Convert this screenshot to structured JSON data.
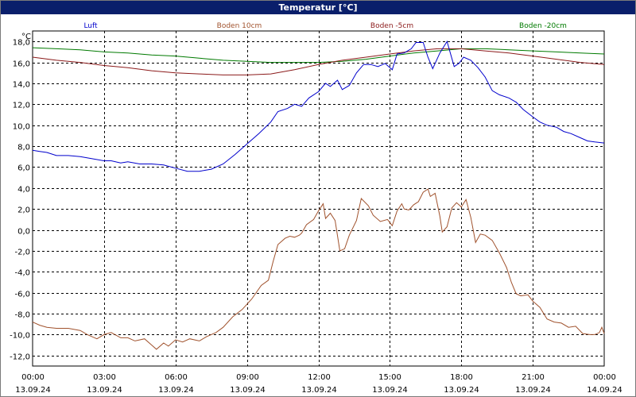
{
  "window": {
    "title": "Temperatur [°C]"
  },
  "chart_data": {
    "type": "line",
    "title": "Temperatur [°C]",
    "ylabel": "°C",
    "xlabel": "",
    "ylim": [
      -13,
      19
    ],
    "xlim": [
      0,
      24
    ],
    "grid": true,
    "legend": "top",
    "y_ticks": [
      {
        "value": 18,
        "label": "18,0"
      },
      {
        "value": 16,
        "label": "16,0"
      },
      {
        "value": 14,
        "label": "14,0"
      },
      {
        "value": 12,
        "label": "12,0"
      },
      {
        "value": 10,
        "label": "10,0"
      },
      {
        "value": 8,
        "label": "8,0"
      },
      {
        "value": 6,
        "label": "6,0"
      },
      {
        "value": 4,
        "label": "4,0"
      },
      {
        "value": 2,
        "label": "2,0"
      },
      {
        "value": 0,
        "label": "0,0"
      },
      {
        "value": -2,
        "label": "-2,0"
      },
      {
        "value": -4,
        "label": "-4,0"
      },
      {
        "value": -6,
        "label": "-6,0"
      },
      {
        "value": -8,
        "label": "-8,0"
      },
      {
        "value": -10,
        "label": "-10,0"
      },
      {
        "value": -12,
        "label": "-12,0"
      }
    ],
    "x_ticks": [
      {
        "value": 0,
        "time": "00:00",
        "date": "13.09.24"
      },
      {
        "value": 3,
        "time": "03:00",
        "date": "13.09.24"
      },
      {
        "value": 6,
        "time": "06:00",
        "date": "13.09.24"
      },
      {
        "value": 9,
        "time": "09:00",
        "date": "13.09.24"
      },
      {
        "value": 12,
        "time": "12:00",
        "date": "13.09.24"
      },
      {
        "value": 15,
        "time": "15:00",
        "date": "13.09.24"
      },
      {
        "value": 18,
        "time": "18:00",
        "date": "13.09.24"
      },
      {
        "value": 21,
        "time": "21:00",
        "date": "13.09.24"
      },
      {
        "value": 24,
        "time": "00:00",
        "date": "14.09.24"
      }
    ],
    "series": [
      {
        "name": "Luft",
        "color": "#0000cc",
        "points": [
          [
            0,
            7.6
          ],
          [
            0.3,
            7.5
          ],
          [
            0.6,
            7.4
          ],
          [
            1,
            7.1
          ],
          [
            1.5,
            7.1
          ],
          [
            2,
            7.0
          ],
          [
            2.5,
            6.8
          ],
          [
            3,
            6.6
          ],
          [
            3.3,
            6.6
          ],
          [
            3.7,
            6.4
          ],
          [
            4,
            6.5
          ],
          [
            4.5,
            6.3
          ],
          [
            5,
            6.3
          ],
          [
            5.5,
            6.2
          ],
          [
            6,
            5.9
          ],
          [
            6.5,
            5.6
          ],
          [
            7,
            5.6
          ],
          [
            7.5,
            5.8
          ],
          [
            8,
            6.3
          ],
          [
            8.5,
            7.2
          ],
          [
            9,
            8.2
          ],
          [
            9.5,
            9.2
          ],
          [
            10,
            10.3
          ],
          [
            10.3,
            11.3
          ],
          [
            10.7,
            11.6
          ],
          [
            11,
            12.0
          ],
          [
            11.3,
            11.8
          ],
          [
            11.6,
            12.6
          ],
          [
            12,
            13.2
          ],
          [
            12.3,
            14.0
          ],
          [
            12.5,
            13.7
          ],
          [
            12.8,
            14.3
          ],
          [
            13,
            13.4
          ],
          [
            13.3,
            13.8
          ],
          [
            13.6,
            15.0
          ],
          [
            13.9,
            15.8
          ],
          [
            14.2,
            15.8
          ],
          [
            14.5,
            15.6
          ],
          [
            14.8,
            15.9
          ],
          [
            15.1,
            15.3
          ],
          [
            15.3,
            16.8
          ],
          [
            15.6,
            16.9
          ],
          [
            15.9,
            17.3
          ],
          [
            16.1,
            17.9
          ],
          [
            16.4,
            17.9
          ],
          [
            16.6,
            16.5
          ],
          [
            16.8,
            15.4
          ],
          [
            17.1,
            16.9
          ],
          [
            17.4,
            18.0
          ],
          [
            17.7,
            15.6
          ],
          [
            17.9,
            15.9
          ],
          [
            18.1,
            16.5
          ],
          [
            18.4,
            16.2
          ],
          [
            18.7,
            15.5
          ],
          [
            19,
            14.6
          ],
          [
            19.3,
            13.3
          ],
          [
            19.6,
            12.9
          ],
          [
            20,
            12.6
          ],
          [
            20.3,
            12.2
          ],
          [
            20.6,
            11.5
          ],
          [
            21,
            10.8
          ],
          [
            21.3,
            10.3
          ],
          [
            21.6,
            10.0
          ],
          [
            22,
            9.8
          ],
          [
            22.3,
            9.4
          ],
          [
            22.6,
            9.2
          ],
          [
            23,
            8.8
          ],
          [
            23.3,
            8.5
          ],
          [
            23.6,
            8.4
          ],
          [
            24,
            8.3
          ]
        ]
      },
      {
        "name": "Boden 10cm",
        "color": "#a0522d",
        "points": [
          [
            0,
            -8.8
          ],
          [
            0.3,
            -9.1
          ],
          [
            0.6,
            -9.3
          ],
          [
            1,
            -9.4
          ],
          [
            1.5,
            -9.4
          ],
          [
            2,
            -9.6
          ],
          [
            2.3,
            -10.0
          ],
          [
            2.7,
            -10.4
          ],
          [
            3,
            -10.0
          ],
          [
            3.3,
            -9.8
          ],
          [
            3.7,
            -10.3
          ],
          [
            4,
            -10.3
          ],
          [
            4.3,
            -10.6
          ],
          [
            4.7,
            -10.4
          ],
          [
            5,
            -11.0
          ],
          [
            5.2,
            -11.4
          ],
          [
            5.5,
            -10.8
          ],
          [
            5.7,
            -11.1
          ],
          [
            6,
            -10.5
          ],
          [
            6.3,
            -10.7
          ],
          [
            6.6,
            -10.4
          ],
          [
            7,
            -10.6
          ],
          [
            7.3,
            -10.2
          ],
          [
            7.7,
            -9.8
          ],
          [
            8,
            -9.3
          ],
          [
            8.4,
            -8.3
          ],
          [
            8.8,
            -7.6
          ],
          [
            9.2,
            -6.6
          ],
          [
            9.6,
            -5.3
          ],
          [
            9.9,
            -4.8
          ],
          [
            10.1,
            -3.0
          ],
          [
            10.3,
            -1.4
          ],
          [
            10.6,
            -0.8
          ],
          [
            10.8,
            -0.6
          ],
          [
            11,
            -0.7
          ],
          [
            11.2,
            -0.5
          ],
          [
            11.3,
            -0.3
          ],
          [
            11.5,
            0.5
          ],
          [
            11.8,
            1.0
          ],
          [
            12,
            1.8
          ],
          [
            12.2,
            2.5
          ],
          [
            12.3,
            1.1
          ],
          [
            12.5,
            1.6
          ],
          [
            12.7,
            0.9
          ],
          [
            12.9,
            -2.0
          ],
          [
            13.1,
            -1.8
          ],
          [
            13.3,
            -0.5
          ],
          [
            13.6,
            0.9
          ],
          [
            13.8,
            3.0
          ],
          [
            14.1,
            2.3
          ],
          [
            14.3,
            1.4
          ],
          [
            14.6,
            0.8
          ],
          [
            14.9,
            1.0
          ],
          [
            15.1,
            0.4
          ],
          [
            15.3,
            1.8
          ],
          [
            15.5,
            2.5
          ],
          [
            15.6,
            2.0
          ],
          [
            15.8,
            1.9
          ],
          [
            16,
            2.4
          ],
          [
            16.2,
            2.7
          ],
          [
            16.4,
            3.6
          ],
          [
            16.6,
            3.9
          ],
          [
            16.7,
            3.2
          ],
          [
            16.9,
            3.5
          ],
          [
            17.1,
            1.3
          ],
          [
            17.2,
            -0.2
          ],
          [
            17.4,
            0.3
          ],
          [
            17.6,
            2.1
          ],
          [
            17.8,
            2.6
          ],
          [
            18,
            2.2
          ],
          [
            18.2,
            2.9
          ],
          [
            18.4,
            1.2
          ],
          [
            18.6,
            -1.2
          ],
          [
            18.8,
            -0.4
          ],
          [
            19,
            -0.5
          ],
          [
            19.3,
            -1.0
          ],
          [
            19.6,
            -2.2
          ],
          [
            19.9,
            -3.6
          ],
          [
            20.1,
            -5.0
          ],
          [
            20.3,
            -6.1
          ],
          [
            20.5,
            -6.3
          ],
          [
            20.8,
            -6.2
          ],
          [
            21,
            -6.8
          ],
          [
            21.3,
            -7.4
          ],
          [
            21.6,
            -8.5
          ],
          [
            21.9,
            -8.8
          ],
          [
            22.2,
            -8.9
          ],
          [
            22.5,
            -9.3
          ],
          [
            22.8,
            -9.2
          ],
          [
            23.1,
            -9.9
          ],
          [
            23.4,
            -10.0
          ],
          [
            23.6,
            -10.0
          ],
          [
            23.8,
            -9.8
          ],
          [
            23.9,
            -9.3
          ],
          [
            24,
            -9.9
          ]
        ]
      },
      {
        "name": "Boden -5cm",
        "color": "#8b1a1a",
        "points": [
          [
            0,
            16.5
          ],
          [
            1,
            16.2
          ],
          [
            2,
            16.0
          ],
          [
            3,
            15.7
          ],
          [
            4,
            15.5
          ],
          [
            5,
            15.2
          ],
          [
            6,
            15.0
          ],
          [
            7,
            14.9
          ],
          [
            8,
            14.8
          ],
          [
            9,
            14.8
          ],
          [
            10,
            14.9
          ],
          [
            11,
            15.3
          ],
          [
            12,
            15.8
          ],
          [
            13,
            16.2
          ],
          [
            14,
            16.5
          ],
          [
            15,
            16.8
          ],
          [
            16,
            17.1
          ],
          [
            17,
            17.3
          ],
          [
            18,
            17.3
          ],
          [
            19,
            17.1
          ],
          [
            20,
            16.9
          ],
          [
            21,
            16.6
          ],
          [
            22,
            16.3
          ],
          [
            23,
            16.0
          ],
          [
            24,
            15.8
          ]
        ]
      },
      {
        "name": "Boden -20cm",
        "color": "#007a00",
        "points": [
          [
            0,
            17.4
          ],
          [
            1,
            17.3
          ],
          [
            2,
            17.2
          ],
          [
            3,
            17.0
          ],
          [
            4,
            16.9
          ],
          [
            5,
            16.7
          ],
          [
            6,
            16.6
          ],
          [
            7,
            16.4
          ],
          [
            8,
            16.2
          ],
          [
            9,
            16.1
          ],
          [
            10,
            16.0
          ],
          [
            11,
            16.0
          ],
          [
            12,
            16.0
          ],
          [
            13,
            16.1
          ],
          [
            14,
            16.3
          ],
          [
            15,
            16.6
          ],
          [
            16,
            16.9
          ],
          [
            17,
            17.1
          ],
          [
            18,
            17.3
          ],
          [
            19,
            17.3
          ],
          [
            20,
            17.2
          ],
          [
            21,
            17.1
          ],
          [
            22,
            17.0
          ],
          [
            23,
            16.9
          ],
          [
            24,
            16.8
          ]
        ]
      }
    ]
  }
}
